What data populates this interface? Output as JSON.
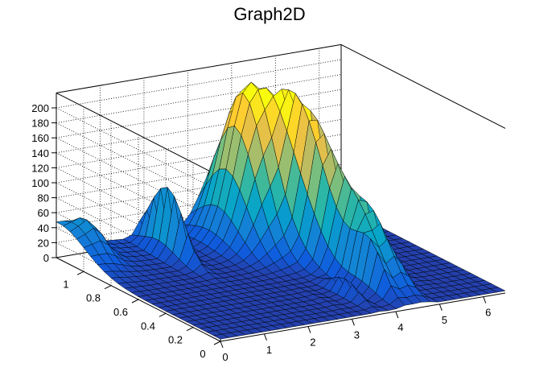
{
  "chart_data": {
    "type": "surface",
    "title": "Graph2D",
    "xlabel": "",
    "ylabel": "",
    "zlabel": "",
    "xlim": [
      0,
      6.5
    ],
    "ylim": [
      0,
      1.2
    ],
    "zlim": [
      0,
      220
    ],
    "x_ticks": [
      "0",
      "1",
      "2",
      "3",
      "4",
      "5",
      "6"
    ],
    "y_ticks": [
      "0",
      "0.2",
      "0.4",
      "0.6",
      "0.8",
      "1"
    ],
    "z_ticks": [
      "0",
      "20",
      "40",
      "60",
      "80",
      "100",
      "120",
      "140",
      "160",
      "180",
      "200"
    ],
    "grid": true,
    "colormap": [
      "#352a87",
      "#0f5cdd",
      "#1481d6",
      "#06a4ca",
      "#2eb7a4",
      "#87bf77",
      "#d1bb59",
      "#fec832",
      "#f9fb0e"
    ],
    "peaks": [
      {
        "x": 3.75,
        "y": 1.0,
        "z": 210
      },
      {
        "x": 4.3,
        "y": 0.7,
        "z": 185
      },
      {
        "x": 1.9,
        "y": 1.0,
        "z": 95
      },
      {
        "x": 0.45,
        "y": 1.1,
        "z": 38
      },
      {
        "x": 0.0,
        "y": 1.2,
        "z": 30
      }
    ]
  }
}
